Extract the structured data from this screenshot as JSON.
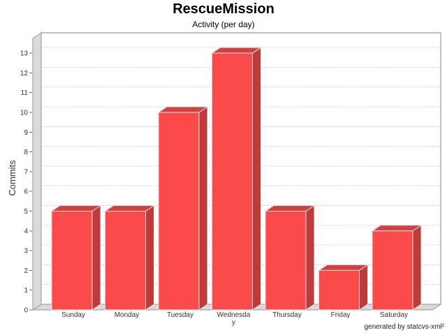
{
  "footer": {
    "credit": "generated by statcvs-xml²"
  },
  "chart_data": {
    "type": "bar",
    "style": "3d-bars",
    "title": "RescueMission",
    "subtitle": "Activity (per day)",
    "categories": [
      "Sunday",
      "Monday",
      "Tuesday",
      "Wednesday",
      "Thursday",
      "Friday",
      "Saturday"
    ],
    "values": [
      5,
      5,
      10,
      13,
      5,
      2,
      4
    ],
    "xlabel": "",
    "ylabel": "Commits",
    "ylim": [
      0,
      13
    ],
    "ytick_step": 1,
    "grid": "horizontal-dashed",
    "legend": "none",
    "colors": {
      "bar_front": "#fa4a4a",
      "bar_top": "#cf4242",
      "bar_side": "#c13a3a",
      "bar_outline": "#e0e0e0",
      "wall_fill": "#dadada",
      "wall_edge": "#949494",
      "plot_border": "#808080",
      "gridline": "#cccccc",
      "tick": "#666666",
      "text": "#333333",
      "background": "#ffffff"
    }
  }
}
